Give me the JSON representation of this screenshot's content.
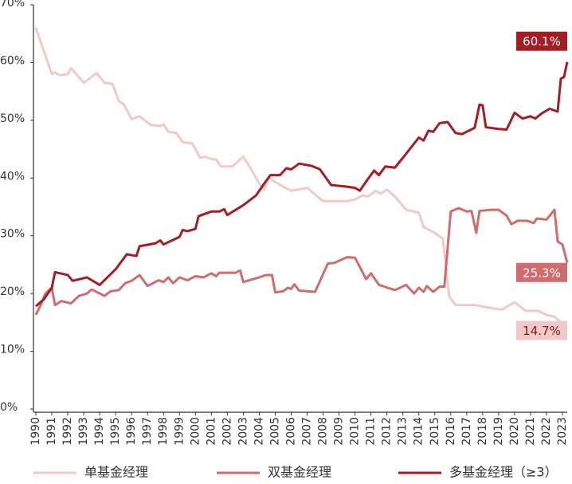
{
  "chart_data": {
    "type": "line",
    "xlim": [
      1989.85,
      2023.3
    ],
    "xticks": [
      1990,
      1991,
      1992,
      1993,
      1994,
      1995,
      1996,
      1997,
      1998,
      1999,
      2000,
      2001,
      2002,
      2003,
      2004,
      2005,
      2006,
      2007,
      2008,
      2009,
      2010,
      2011,
      2012,
      2013,
      2014,
      2015,
      2016,
      2017,
      2018,
      2019,
      2020,
      2021,
      2022,
      2023
    ],
    "ylim": [
      0,
      70
    ],
    "yticks": [
      {
        "value": 0,
        "label": "0%"
      },
      {
        "value": 10,
        "label": "10%"
      },
      {
        "value": 20,
        "label": "20%"
      },
      {
        "value": 30,
        "label": "30%"
      },
      {
        "value": 40,
        "label": "40%"
      },
      {
        "value": 50,
        "label": "50%"
      },
      {
        "value": 60,
        "label": "60%"
      },
      {
        "value": 70,
        "label": "70%"
      }
    ],
    "grid": false,
    "legend": "bottom",
    "series": [
      {
        "name": "单基金经理",
        "color": "#f2c9c9",
        "x": [
          1990,
          1990.5,
          1991,
          1991.2,
          1991.5,
          1992,
          1992.2,
          1993,
          1993.8,
          1994.3,
          1994.8,
          1995.2,
          1995.5,
          1996,
          1996.5,
          1997.2,
          1997.8,
          1998,
          1998.3,
          1998.8,
          1999.2,
          1999.8,
          2000.3,
          2000.6,
          2001,
          2001.3,
          2001.6,
          2002.3,
          2003,
          2003.5,
          2004,
          2004.3,
          2004.6,
          2005.5,
          2006,
          2007,
          2008,
          2009.5,
          2010,
          2010.5,
          2010.8,
          2011.3,
          2011.6,
          2012,
          2012.5,
          2013.2,
          2014,
          2014.3,
          2015,
          2015.5,
          2015.9,
          2016.3,
          2017.5,
          2018.5,
          2019.2,
          2020,
          2020.7,
          2021.5,
          2022,
          2022.5,
          2023
        ],
        "values": [
          66,
          62,
          58,
          58.3,
          57.8,
          58,
          59,
          56.5,
          58.2,
          56.5,
          56.3,
          53.3,
          52.8,
          50.2,
          50.7,
          49.2,
          49,
          49.3,
          48,
          47.8,
          46.2,
          46,
          43.5,
          43.7,
          43.3,
          43.2,
          42,
          42,
          43.7,
          41.5,
          39,
          38,
          40,
          38.5,
          37.8,
          38.3,
          36,
          36,
          36.3,
          37,
          36.8,
          37.8,
          37.3,
          38,
          36.8,
          34.5,
          34,
          31.5,
          30.5,
          29.5,
          19.5,
          18,
          18,
          17.5,
          17.2,
          18.5,
          17,
          17,
          16.3,
          16,
          14.7
        ],
        "value_labels": [
          null,
          null,
          null,
          null,
          null,
          null,
          null,
          null,
          null,
          null,
          null,
          null,
          null,
          null,
          null,
          null,
          null,
          null,
          null,
          null,
          null,
          null,
          null,
          null,
          null,
          null,
          null,
          null,
          null,
          null,
          null,
          null,
          null,
          null,
          null,
          null,
          null,
          null,
          null,
          null,
          null,
          null,
          null,
          null,
          null,
          null,
          null,
          null,
          null,
          null,
          null,
          null,
          null,
          null,
          null,
          null,
          null,
          null,
          null,
          null,
          "14.7%"
        ]
      },
      {
        "name": "双基金经理",
        "color": "#d06b6e",
        "x": [
          1990,
          1990.3,
          1990.6,
          1991,
          1991.2,
          1991.6,
          1992.2,
          1992.7,
          1993.2,
          1993.5,
          1994.3,
          1994.7,
          1995.2,
          1995.6,
          1996,
          1996.5,
          1997,
          1997.7,
          1998,
          1998.3,
          1998.6,
          1999,
          1999.5,
          2000,
          2000.5,
          2001,
          2001.3,
          2001.5,
          2002.5,
          2002.8,
          2003,
          2004,
          2004.4,
          2004.8,
          2005,
          2005.5,
          2005.8,
          2006,
          2006.2,
          2006.5,
          2007.5,
          2008.3,
          2008.7,
          2009.5,
          2010,
          2010.7,
          2011,
          2011.5,
          2012.5,
          2013.2,
          2013.7,
          2014,
          2014.3,
          2014.5,
          2014.9,
          2015.3,
          2015.6,
          2016,
          2016.5,
          2017,
          2017.3,
          2017.6,
          2017.8,
          2018.5,
          2019,
          2019.5,
          2019.8,
          2020.2,
          2020.8,
          2021.2,
          2021.4,
          2022,
          2022.5,
          2022.7,
          2023,
          2023.3
        ],
        "values": [
          16.3,
          18,
          20,
          21,
          18,
          18.7,
          18.3,
          19.6,
          20,
          20.7,
          19.6,
          20.4,
          20.6,
          21.8,
          22.2,
          23.2,
          21.3,
          22.3,
          22,
          22.8,
          21.8,
          22.8,
          22.3,
          23,
          22.8,
          23.5,
          23,
          23.6,
          23.6,
          24,
          22,
          22.8,
          23.2,
          23.2,
          20.2,
          20.4,
          21,
          20.8,
          21.6,
          20.5,
          20.3,
          25.2,
          25.3,
          26.3,
          26.2,
          22.5,
          23.5,
          21.5,
          20.6,
          21.5,
          20,
          21,
          20.3,
          21.3,
          20.3,
          21.2,
          21.2,
          34.2,
          34.8,
          34.2,
          34.3,
          30.5,
          34.3,
          34.5,
          34.5,
          33.5,
          32,
          32.6,
          32.6,
          32.2,
          33,
          32.8,
          34.5,
          29,
          28.5,
          25.3
        ],
        "value_labels": [
          null,
          null,
          null,
          null,
          null,
          null,
          null,
          null,
          null,
          null,
          null,
          null,
          null,
          null,
          null,
          null,
          null,
          null,
          null,
          null,
          null,
          null,
          null,
          null,
          null,
          null,
          null,
          null,
          null,
          null,
          null,
          null,
          null,
          null,
          null,
          null,
          null,
          null,
          null,
          null,
          null,
          null,
          null,
          null,
          null,
          null,
          null,
          null,
          null,
          null,
          null,
          null,
          null,
          null,
          null,
          null,
          null,
          null,
          null,
          null,
          null,
          null,
          null,
          null,
          null,
          null,
          null,
          null,
          null,
          null,
          null,
          null,
          null,
          null,
          null,
          "25.3%"
        ]
      },
      {
        "name": "多基金经理（≥3）",
        "color": "#a51c24",
        "x": [
          1990,
          1990.5,
          1991,
          1991.2,
          1992,
          1992.3,
          1993.2,
          1994,
          1995,
          1995.7,
          1996.3,
          1996.5,
          1997.5,
          1997.8,
          1998,
          1999,
          1999.2,
          1999.5,
          2000,
          2000.2,
          2001,
          2001.5,
          2001.8,
          2002,
          2003,
          2003.8,
          2004.3,
          2004.7,
          2005.3,
          2005.7,
          2006,
          2006.5,
          2007.3,
          2007.8,
          2008.5,
          2009.5,
          2010,
          2010.3,
          2010.8,
          2011.2,
          2011.5,
          2011.9,
          2012.5,
          2013,
          2014,
          2014.3,
          2014.6,
          2014.9,
          2015.3,
          2015.8,
          2016.3,
          2016.7,
          2017.5,
          2017.8,
          2018,
          2018.2,
          2019,
          2019.5,
          2020,
          2020.5,
          2021,
          2021.3,
          2021.7,
          2022.2,
          2022.7,
          2022.9,
          2023.1,
          2023.3
        ],
        "values": [
          17.8,
          19,
          21,
          23.7,
          23.2,
          22.2,
          22.8,
          21.5,
          24.2,
          26.8,
          26.5,
          28.2,
          28.7,
          29.2,
          28.5,
          29.8,
          31,
          30.8,
          31.2,
          33.4,
          34.2,
          34.2,
          34.6,
          33.6,
          35.3,
          37,
          39,
          40.5,
          40.5,
          41.7,
          41.5,
          42.5,
          42.1,
          41.5,
          38.8,
          38.5,
          38.3,
          37.8,
          39.8,
          41.3,
          40.5,
          42,
          41.8,
          43.5,
          47,
          46.5,
          48.2,
          48,
          49.5,
          49.7,
          47.8,
          47.6,
          48.7,
          52.7,
          52.6,
          48.8,
          48.5,
          48.4,
          51.3,
          50.3,
          50.7,
          50.3,
          51.2,
          52,
          51.5,
          57.2,
          57.5,
          60.1
        ],
        "value_labels": [
          null,
          null,
          null,
          null,
          null,
          null,
          null,
          null,
          null,
          null,
          null,
          null,
          null,
          null,
          null,
          null,
          null,
          null,
          null,
          null,
          null,
          null,
          null,
          null,
          null,
          null,
          null,
          null,
          null,
          null,
          null,
          null,
          null,
          null,
          null,
          null,
          null,
          null,
          null,
          null,
          null,
          null,
          null,
          null,
          null,
          null,
          null,
          null,
          null,
          null,
          null,
          null,
          null,
          null,
          null,
          null,
          null,
          null,
          null,
          null,
          null,
          null,
          null,
          null,
          null,
          null,
          null,
          "60.1%"
        ]
      }
    ]
  }
}
